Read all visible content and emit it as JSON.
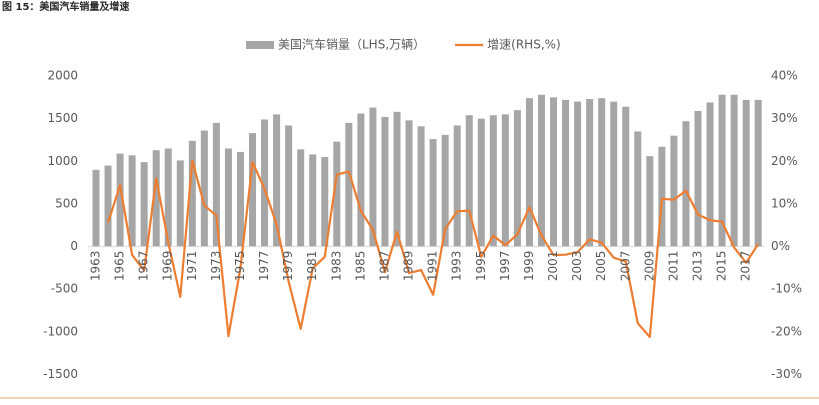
{
  "header": "图 15：美国汽车销量及增速",
  "chart_data": {
    "type": "bar-line",
    "categories": [
      "1963",
      null,
      "1965",
      null,
      "1967",
      null,
      "1969",
      null,
      "1971",
      null,
      "1973",
      null,
      "1975",
      null,
      "1977",
      null,
      "1979",
      null,
      "1981",
      null,
      "1983",
      null,
      "1985",
      null,
      "1987",
      null,
      "1989",
      null,
      "1991",
      null,
      "1993",
      null,
      "1995",
      null,
      "1997",
      null,
      "1999",
      null,
      "2001",
      null,
      "2003",
      null,
      "2005",
      null,
      "2007",
      null,
      "2009",
      null,
      "2011",
      null,
      "2013",
      null,
      "2015",
      null,
      "2017",
      null
    ],
    "series": [
      {
        "name": "美国汽车销量（LHS,万辆）",
        "type": "bar",
        "color": "#a6a6a6",
        "axis": "y",
        "values": [
          900,
          950,
          1090,
          1070,
          990,
          1130,
          1150,
          1010,
          1240,
          1360,
          1450,
          1150,
          1110,
          1330,
          1490,
          1550,
          1420,
          1140,
          1080,
          1050,
          1230,
          1450,
          1560,
          1630,
          1520,
          1580,
          1480,
          1410,
          1260,
          1310,
          1420,
          1540,
          1500,
          1540,
          1550,
          1600,
          1740,
          1780,
          1750,
          1720,
          1700,
          1730,
          1740,
          1700,
          1640,
          1350,
          1060,
          1170,
          1300,
          1470,
          1590,
          1690,
          1780,
          1780,
          1720,
          1720
        ]
      },
      {
        "name": "增速(RHS,%)",
        "type": "line",
        "color": "#ed7d31",
        "axis": "y2",
        "values": [
          null,
          5.6,
          14.4,
          -2,
          -5.6,
          16,
          1,
          -11.8,
          20.2,
          9.6,
          7.3,
          -21,
          -5,
          19.8,
          13.5,
          5.2,
          -8.2,
          -19.3,
          -5.1,
          -2.4,
          16.9,
          17.6,
          8.4,
          3.9,
          -6,
          3.5,
          -6.2,
          -5.5,
          -11.3,
          4.1,
          8.3,
          8.4,
          -2.4,
          2.6,
          0.3,
          2.9,
          9.2,
          2.6,
          -2,
          -1.9,
          -1.3,
          1.7,
          0.9,
          -2.6,
          -3.5,
          -18,
          -21.2,
          11.2,
          11,
          13.1,
          7.5,
          6.2,
          5.8,
          -0.2,
          -3.8,
          0.6
        ]
      }
    ],
    "ylim": [
      -1500,
      2000
    ],
    "yticks": [
      -1500,
      -1000,
      -500,
      0,
      500,
      1000,
      1500,
      2000
    ],
    "y2lim": [
      -30,
      40
    ],
    "y2ticks": [
      {
        "value": -30,
        "label": "-30%"
      },
      {
        "value": -20,
        "label": "-20%"
      },
      {
        "value": -10,
        "label": "-10%"
      },
      {
        "value": 0,
        "label": "0%"
      },
      {
        "value": 10,
        "label": "10%"
      },
      {
        "value": 20,
        "label": "20%"
      },
      {
        "value": 30,
        "label": "30%"
      },
      {
        "value": 40,
        "label": "40%"
      }
    ],
    "legend": "top"
  }
}
